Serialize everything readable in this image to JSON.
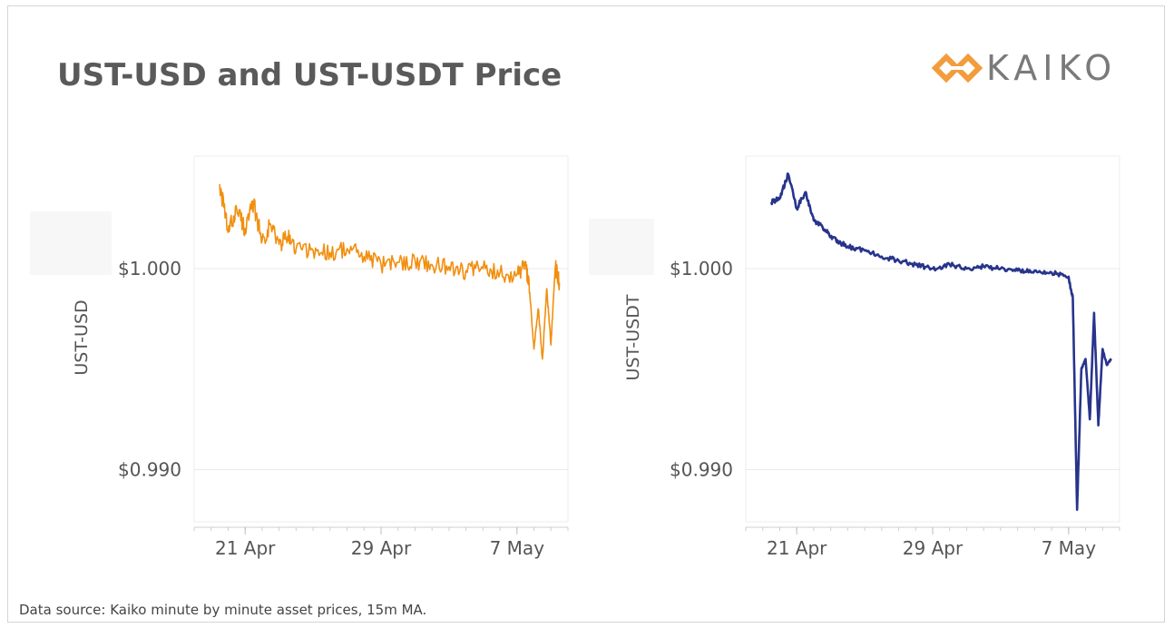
{
  "title": "UST-USD and UST-USDT Price",
  "logo": {
    "text": "KAIKO",
    "icon": "kaiko-diamond-link-icon",
    "accent": "#f39c3b"
  },
  "source": "Data source: Kaiko minute by minute  asset prices, 15m MA.",
  "chart_data": [
    {
      "type": "line",
      "ylabel": "UST-USD",
      "color": "#f18f0f",
      "ylim": [
        0.9874,
        1.0056
      ],
      "yticks": [
        1.0,
        0.99
      ],
      "ytick_labels": [
        "$1.000",
        "$0.990"
      ],
      "xlim": [
        "2022-04-18",
        "2022-05-10"
      ],
      "xticks": [
        "2022-04-21",
        "2022-04-29",
        "2022-05-07"
      ],
      "xtick_labels": [
        "21 Apr",
        "29 Apr",
        "7 May"
      ],
      "grid": true,
      "series": [
        {
          "x": [
            "2022-04-19T12:00",
            "2022-04-20T00:00",
            "2022-04-20T12:00",
            "2022-04-21T00:00",
            "2022-04-21T12:00",
            "2022-04-22T00:00",
            "2022-04-22T12:00",
            "2022-04-23T00:00",
            "2022-04-23T12:00",
            "2022-04-24T00:00",
            "2022-04-25T00:00",
            "2022-04-26T00:00",
            "2022-04-27T00:00",
            "2022-04-28T00:00",
            "2022-04-29T00:00",
            "2022-04-30T00:00",
            "2022-05-01T00:00",
            "2022-05-02T00:00",
            "2022-05-03T00:00",
            "2022-05-04T00:00",
            "2022-05-05T00:00",
            "2022-05-06T00:00",
            "2022-05-07T00:00",
            "2022-05-07T12:00",
            "2022-05-07T18:00",
            "2022-05-08T00:00",
            "2022-05-08T06:00",
            "2022-05-08T12:00",
            "2022-05-08T18:00",
            "2022-05-09T00:00",
            "2022-05-09T06:00",
            "2022-05-09T12:00"
          ],
          "y": [
            1.0042,
            1.0018,
            1.003,
            1.002,
            1.0032,
            1.0014,
            1.0022,
            1.0012,
            1.0016,
            1.001,
            1.0009,
            1.0008,
            1.001,
            1.0006,
            1.0002,
            1.0003,
            1.0004,
            1.0002,
            1.0001,
            0.9999,
            1.0,
            0.9998,
            0.9997,
            1.0002,
            0.9988,
            0.996,
            0.998,
            0.9955,
            0.999,
            0.9962,
            1.0001,
            0.9993
          ]
        }
      ]
    },
    {
      "type": "line",
      "ylabel": "UST-USDT",
      "color": "#27348b",
      "ylim": [
        0.9874,
        1.0056
      ],
      "yticks": [
        1.0,
        0.99
      ],
      "ytick_labels": [
        "$1.000",
        "$0.990"
      ],
      "xlim": [
        "2022-04-18",
        "2022-05-10"
      ],
      "xticks": [
        "2022-04-21",
        "2022-04-29",
        "2022-05-07"
      ],
      "xtick_labels": [
        "21 Apr",
        "29 Apr",
        "7 May"
      ],
      "grid": true,
      "series": [
        {
          "x": [
            "2022-04-19T12:00",
            "2022-04-20T00:00",
            "2022-04-20T12:00",
            "2022-04-21T00:00",
            "2022-04-21T12:00",
            "2022-04-22T00:00",
            "2022-04-22T12:00",
            "2022-04-23T00:00",
            "2022-04-23T12:00",
            "2022-04-24T00:00",
            "2022-04-25T00:00",
            "2022-04-26T00:00",
            "2022-04-27T00:00",
            "2022-04-28T00:00",
            "2022-04-29T00:00",
            "2022-04-30T00:00",
            "2022-05-01T00:00",
            "2022-05-02T00:00",
            "2022-05-03T00:00",
            "2022-05-04T00:00",
            "2022-05-05T00:00",
            "2022-05-06T00:00",
            "2022-05-07T00:00",
            "2022-05-07T06:00",
            "2022-05-07T12:00",
            "2022-05-07T18:00",
            "2022-05-08T00:00",
            "2022-05-08T06:00",
            "2022-05-08T12:00",
            "2022-05-08T18:00",
            "2022-05-09T00:00",
            "2022-05-09T06:00",
            "2022-05-09T12:00"
          ],
          "y": [
            1.0033,
            1.0035,
            1.0047,
            1.003,
            1.0038,
            1.0024,
            1.0021,
            1.0016,
            1.0013,
            1.0011,
            1.0009,
            1.0006,
            1.0004,
            1.0002,
            1.0,
            1.0002,
            1.0,
            1.0001,
            1.0,
            0.9999,
            0.9999,
            0.9998,
            0.9996,
            0.9985,
            0.988,
            0.995,
            0.9955,
            0.9925,
            0.9978,
            0.9922,
            0.996,
            0.9952,
            0.9955
          ]
        }
      ]
    }
  ]
}
